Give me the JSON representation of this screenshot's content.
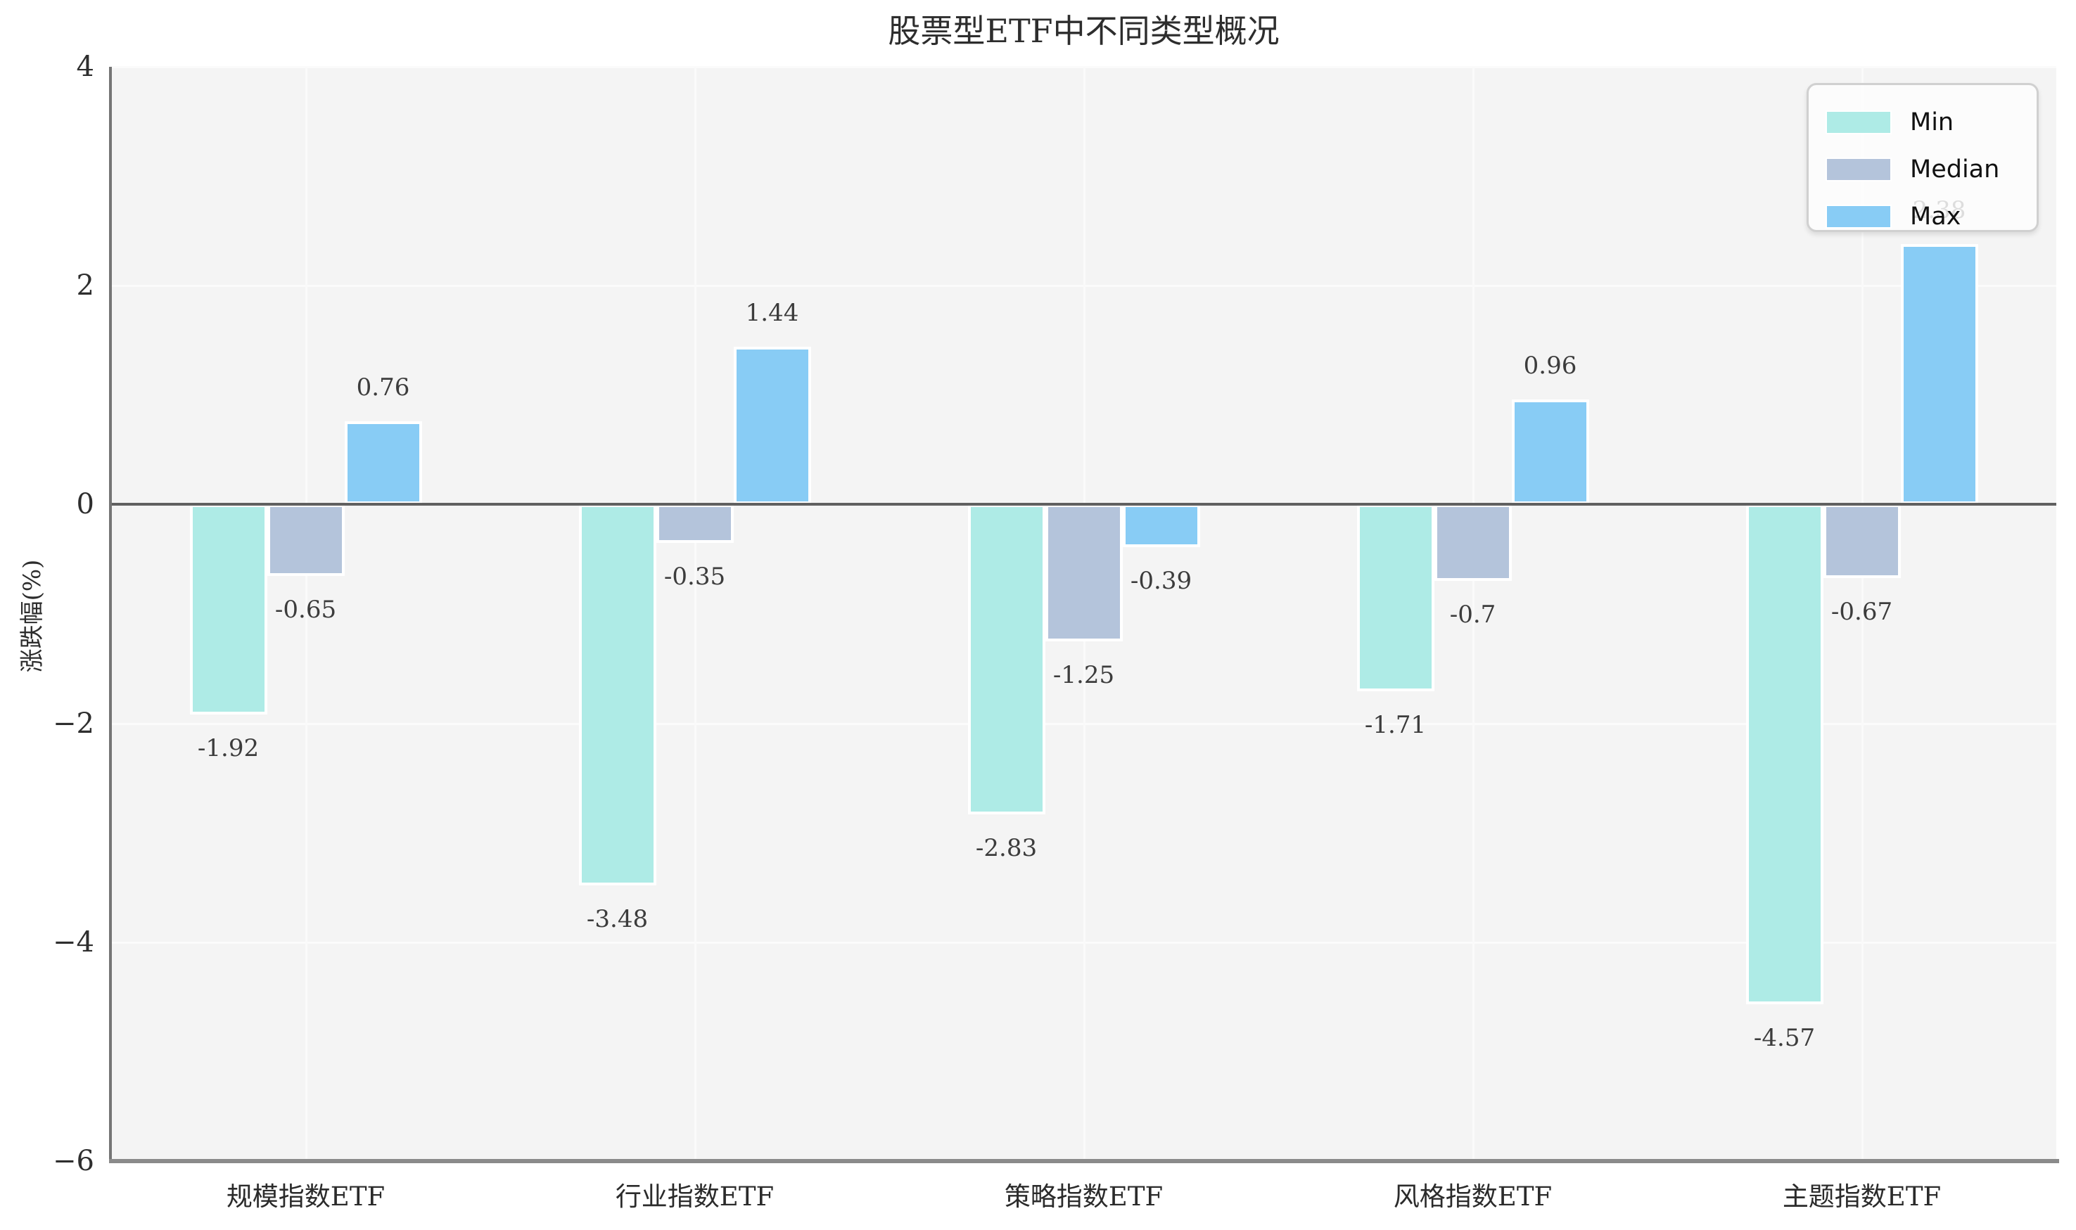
{
  "chart_data": {
    "type": "bar",
    "title": "股票型ETF中不同类型概况",
    "ylabel": "涨跌幅(%)",
    "xlabel": "",
    "ylim": [
      -6,
      4
    ],
    "yticks": [
      4,
      2,
      0,
      -2,
      -4,
      -6
    ],
    "ytick_labels": [
      "4",
      "2",
      "0",
      "−2",
      "−4",
      "−6"
    ],
    "grid": true,
    "legend_position": "upper right",
    "categories": [
      "规模指数ETF",
      "行业指数ETF",
      "策略指数ETF",
      "风格指数ETF",
      "主题指数ETF"
    ],
    "series": [
      {
        "name": "Min",
        "color": "#aeebe6",
        "values": [
          -1.92,
          -3.48,
          -2.83,
          -1.71,
          -4.57
        ],
        "labels": [
          "-1.92",
          "-3.48",
          "-2.83",
          "-1.71",
          "-4.57"
        ]
      },
      {
        "name": "Median",
        "color": "#b4c4db",
        "values": [
          -0.65,
          -0.35,
          -1.25,
          -0.7,
          -0.67
        ],
        "labels": [
          "-0.65",
          "-0.35",
          "-1.25",
          "-0.7",
          "-0.67"
        ]
      },
      {
        "name": "Max",
        "color": "#88ccf5",
        "values": [
          0.76,
          1.44,
          -0.39,
          0.96,
          2.38
        ],
        "labels": [
          "0.76",
          "1.44",
          "-0.39",
          "0.96",
          "2.38"
        ]
      }
    ],
    "colors": {
      "plot_background": "#f4f4f4",
      "figure_background": "#ffffff",
      "gridline": "#fafafa",
      "zero_line": "#606060",
      "spine": "#8a8a8a",
      "text": "#2d2d2d"
    }
  }
}
